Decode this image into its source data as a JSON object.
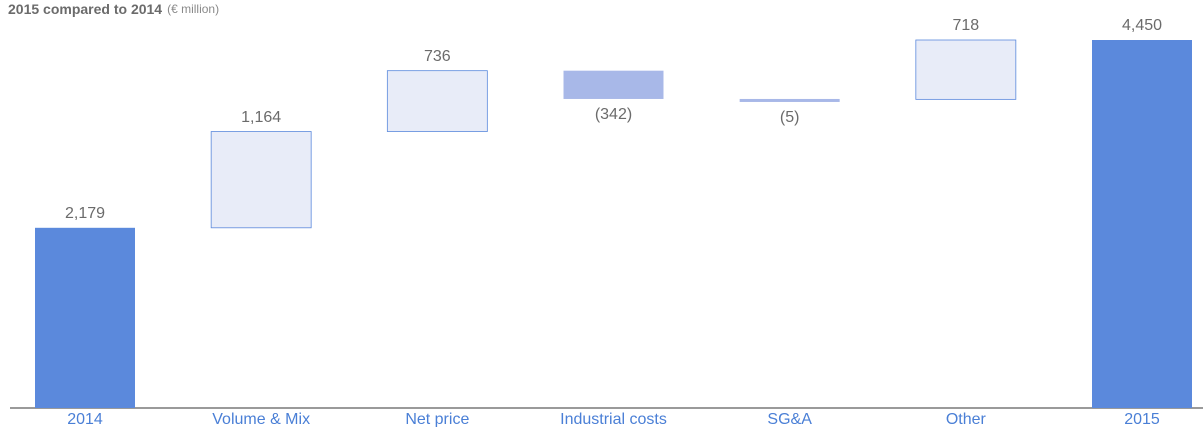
{
  "chart_data": {
    "type": "waterfall",
    "title": "2015 compared to 2014",
    "unit": "(€ million)",
    "categories": [
      "2014",
      "Volume & Mix",
      "Net price",
      "Industrial costs",
      "SG&A",
      "Other",
      "2015"
    ],
    "values": [
      2179,
      1164,
      736,
      -342,
      -5,
      718,
      4450
    ],
    "value_labels": [
      "2,179",
      "1,164",
      "736",
      "(342)",
      "(5)",
      "718",
      "4,450"
    ],
    "total_color": "#5b89dc",
    "increase_color": "#e8ecf8",
    "decrease_color": "#a8b8e8"
  }
}
